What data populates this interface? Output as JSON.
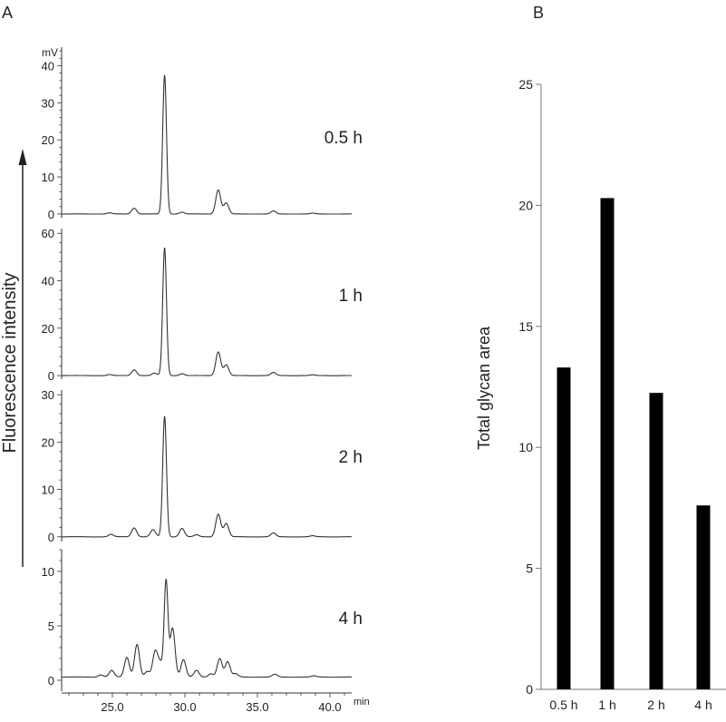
{
  "chart_data": [
    {
      "panel_label": "A",
      "type": "line",
      "ylabel": "Fluorescence intensity",
      "yunit": "mV",
      "xunit": "min",
      "xlim": [
        21.5,
        41.5
      ],
      "xticks": [
        "25.0",
        "30.0",
        "35.0",
        "40.0"
      ],
      "grid": false,
      "traces": [
        {
          "label": "0.5 h",
          "ylim": [
            -1,
            45
          ],
          "yticks": [
            0,
            10,
            20,
            30,
            40
          ],
          "baseline": 0,
          "peaks": [
            [
              24.8,
              0.3
            ],
            [
              26.5,
              1.6
            ],
            [
              28.6,
              37.5
            ],
            [
              29.8,
              0.5
            ],
            [
              32.3,
              6.5
            ],
            [
              32.85,
              3
            ],
            [
              36.1,
              0.8
            ],
            [
              38.8,
              0.2
            ]
          ]
        },
        {
          "label": "1 h",
          "ylim": [
            -1.5,
            62
          ],
          "yticks": [
            0,
            20,
            40,
            60
          ],
          "baseline": 0,
          "peaks": [
            [
              24.8,
              0.4
            ],
            [
              26.5,
              2.5
            ],
            [
              27.9,
              1
            ],
            [
              28.6,
              54
            ],
            [
              29.8,
              0.8
            ],
            [
              32.3,
              10
            ],
            [
              32.85,
              4.5
            ],
            [
              36.1,
              1.3
            ],
            [
              38.8,
              0.3
            ]
          ]
        },
        {
          "label": "2 h",
          "ylim": [
            -1,
            31
          ],
          "yticks": [
            0,
            10,
            20,
            30
          ],
          "baseline": 0,
          "peaks": [
            [
              24.9,
              0.5
            ],
            [
              26.5,
              1.9
            ],
            [
              27.8,
              1.5
            ],
            [
              28.6,
              25.5
            ],
            [
              29.8,
              1.8
            ],
            [
              30.8,
              0.4
            ],
            [
              32.3,
              4.8
            ],
            [
              32.85,
              2.8
            ],
            [
              36.1,
              0.8
            ],
            [
              38.8,
              0.2
            ]
          ]
        },
        {
          "label": "4 h",
          "ylim": [
            -1,
            12
          ],
          "yticks": [
            0,
            5,
            10
          ],
          "baseline": 0.3,
          "peaks": [
            [
              24.2,
              0.2
            ],
            [
              24.95,
              0.6
            ],
            [
              26.0,
              1.8
            ],
            [
              26.7,
              3.0
            ],
            [
              27.4,
              0.5
            ],
            [
              27.95,
              2.3
            ],
            [
              28.3,
              1.2
            ],
            [
              28.7,
              8.8
            ],
            [
              29.15,
              4.5
            ],
            [
              29.9,
              1.6
            ],
            [
              30.8,
              0.6
            ],
            [
              31.8,
              0.3
            ],
            [
              32.4,
              1.7
            ],
            [
              32.95,
              1.4
            ],
            [
              33.5,
              0.3
            ],
            [
              36.2,
              0.25
            ],
            [
              38.9,
              0.1
            ]
          ]
        }
      ]
    },
    {
      "panel_label": "B",
      "type": "bar",
      "categories": [
        "0.5 h",
        "1 h",
        "2 h",
        "4 h"
      ],
      "values": [
        13.3,
        20.3,
        12.25,
        7.6
      ],
      "xlabel": "",
      "ylabel": "Total glycan area",
      "ylim": [
        0,
        25
      ],
      "yticks": [
        0,
        5,
        10,
        15,
        20,
        25
      ],
      "grid": false,
      "bar_color": "#000000"
    }
  ]
}
